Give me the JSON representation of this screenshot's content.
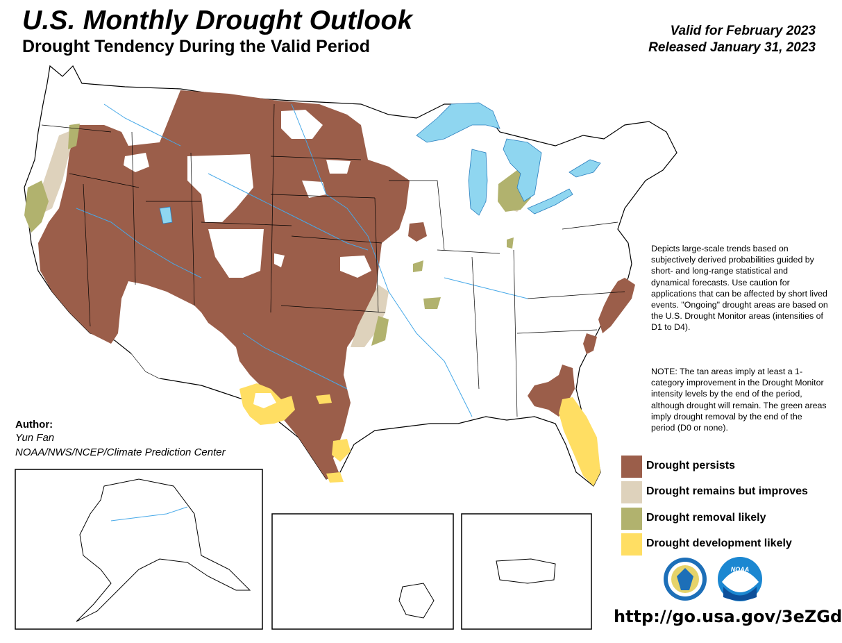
{
  "header": {
    "title": "U.S. Monthly Drought Outlook",
    "subtitle": "Drought Tendency During the Valid Period",
    "valid": "Valid for February 2023",
    "released": "Released January 31, 2023"
  },
  "description": "Depicts large-scale trends based on subjectively derived probabilities guided by short- and long-range statistical and dynamical forecasts. Use caution for applications that can be affected by short lived events. \"Ongoing\" drought areas are based on the U.S. Drought Monitor areas (intensities of D1 to D4).",
  "note": "NOTE: The tan areas imply at least a 1-category improvement in the Drought Monitor intensity levels by the end of the period, although drought will remain. The green areas imply drought removal by the end of the period (D0 or none).",
  "legend": [
    {
      "label": "Drought persists",
      "color": "#9b5e4a"
    },
    {
      "label": "Drought remains but improves",
      "color": "#ded2bc"
    },
    {
      "label": "Drought removal likely",
      "color": "#b1b26e"
    },
    {
      "label": "Drought development likely",
      "color": "#ffde63"
    }
  ],
  "author": {
    "label": "Author:",
    "name": "Yun Fan",
    "org": "NOAA/NWS/NCEP/Climate Prediction Center"
  },
  "url": "http://go.usa.gov/3eZGd",
  "logos": {
    "commerce": "department-of-commerce-seal-icon",
    "noaa": "noaa-logo-icon",
    "noaa_text": "NOAA"
  },
  "colors": {
    "water": "#8fd6f0",
    "river": "#46a8e8",
    "persist": "#9b5e4a",
    "improve": "#ded2bc",
    "removal": "#b1b26e",
    "develop": "#ffde63"
  }
}
